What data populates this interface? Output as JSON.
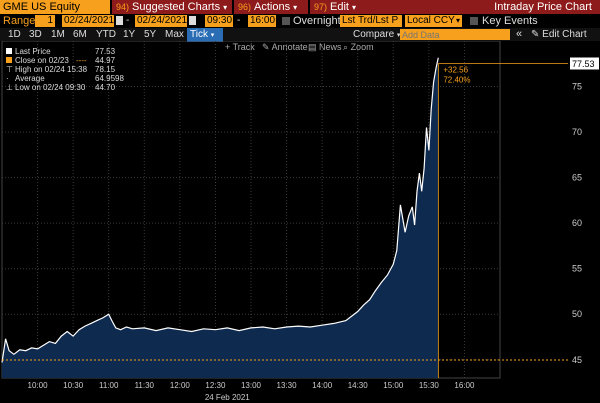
{
  "toolbar": {
    "ticker": "GME US Equity",
    "menus": [
      {
        "num": "94)",
        "label": "Suggested Charts"
      },
      {
        "num": "96)",
        "label": "Actions"
      },
      {
        "num": "97)",
        "label": "Edit"
      }
    ],
    "window_title": "Intraday Price Chart"
  },
  "range_bar": {
    "range_label": "Range",
    "range_value": "1",
    "start_date": "02/24/2021",
    "end_date": "02/24/2021",
    "start_time": "09:30",
    "end_time": "16:00",
    "overnight_label": "Overnight",
    "field_select": "Lst Trd/Lst P",
    "currency_select": "Local CCY",
    "key_events_label": "Key Events"
  },
  "period_bar": {
    "periods": [
      "1D",
      "3D",
      "1M",
      "6M",
      "YTD",
      "1Y",
      "5Y",
      "Max"
    ],
    "active_period": "Tick",
    "compare_label": "Compare",
    "add_data_placeholder": "Add Data",
    "edit_chart_label": "Edit Chart"
  },
  "chart_tools": {
    "track": "Track",
    "annotate": "Annotate",
    "news": "News",
    "zoom": "Zoom"
  },
  "legend": [
    {
      "label": "Last Price",
      "value": "77.53"
    },
    {
      "label": "Close on 02/23",
      "value": "44.97"
    },
    {
      "label": "High on 02/24 15:38",
      "value": "78.15"
    },
    {
      "label": "Average",
      "value": "64.9598"
    },
    {
      "label": "Low on 02/24 09:30",
      "value": "44.70"
    }
  ],
  "colors": {
    "accent": "#f7a01d",
    "area_fill": "#0e2a4f",
    "menu_red": "#8e1b1b",
    "price_line": "#ffffff",
    "grid": "#3a3a3a"
  },
  "chart_data": {
    "type": "area",
    "title": "",
    "xlabel": "24 Feb 2021",
    "ylabel": "",
    "x_ticks": [
      "10:00",
      "10:30",
      "11:00",
      "11:30",
      "12:00",
      "12:30",
      "13:00",
      "13:30",
      "14:00",
      "14:30",
      "15:00",
      "15:30",
      "16:00"
    ],
    "y_ticks": [
      45,
      50,
      55,
      60,
      65,
      70,
      75
    ],
    "ylim": [
      43,
      80
    ],
    "x_range_minutes": [
      570,
      990
    ],
    "last_price": 77.53,
    "prev_close": 44.97,
    "change_abs": "+32.56",
    "change_pct": "72.40%",
    "series": [
      {
        "x": [
          "09:30",
          "09:33",
          "09:36",
          "09:40",
          "09:45",
          "09:50",
          "09:55",
          "10:00",
          "10:05",
          "10:10",
          "10:15",
          "10:20",
          "10:25",
          "10:30",
          "10:35",
          "10:40",
          "10:45",
          "10:50",
          "10:55",
          "11:00",
          "11:03",
          "11:06",
          "11:10",
          "11:15",
          "11:20",
          "11:30",
          "11:40",
          "11:50",
          "12:00",
          "12:10",
          "12:20",
          "12:30",
          "12:40",
          "12:50",
          "13:00",
          "13:10",
          "13:20",
          "13:30",
          "13:40",
          "13:50",
          "14:00",
          "14:10",
          "14:20",
          "14:30",
          "14:35",
          "14:40",
          "14:45",
          "14:50",
          "14:55",
          "15:00",
          "15:03",
          "15:06",
          "15:10",
          "15:13",
          "15:16",
          "15:18",
          "15:20",
          "15:22",
          "15:24",
          "15:26",
          "15:28",
          "15:30",
          "15:32",
          "15:34",
          "15:36",
          "15:38"
        ],
        "values": [
          44.7,
          47.3,
          46.0,
          45.6,
          46.1,
          46.0,
          46.3,
          46.2,
          46.6,
          47.0,
          46.8,
          47.6,
          48.1,
          47.6,
          48.3,
          48.7,
          49.0,
          49.3,
          49.6,
          50.0,
          49.2,
          48.5,
          48.3,
          48.6,
          48.4,
          48.5,
          48.2,
          48.5,
          48.3,
          48.1,
          48.4,
          48.3,
          48.5,
          48.2,
          48.5,
          48.6,
          48.4,
          48.6,
          48.7,
          48.6,
          48.8,
          49.0,
          49.3,
          50.3,
          51.0,
          51.6,
          52.6,
          53.5,
          54.3,
          55.5,
          57.0,
          62.0,
          59.0,
          60.8,
          61.8,
          59.8,
          63.5,
          65.5,
          63.5,
          66.0,
          70.5,
          68.0,
          72.5,
          75.5,
          77.0,
          78.15
        ]
      }
    ]
  }
}
